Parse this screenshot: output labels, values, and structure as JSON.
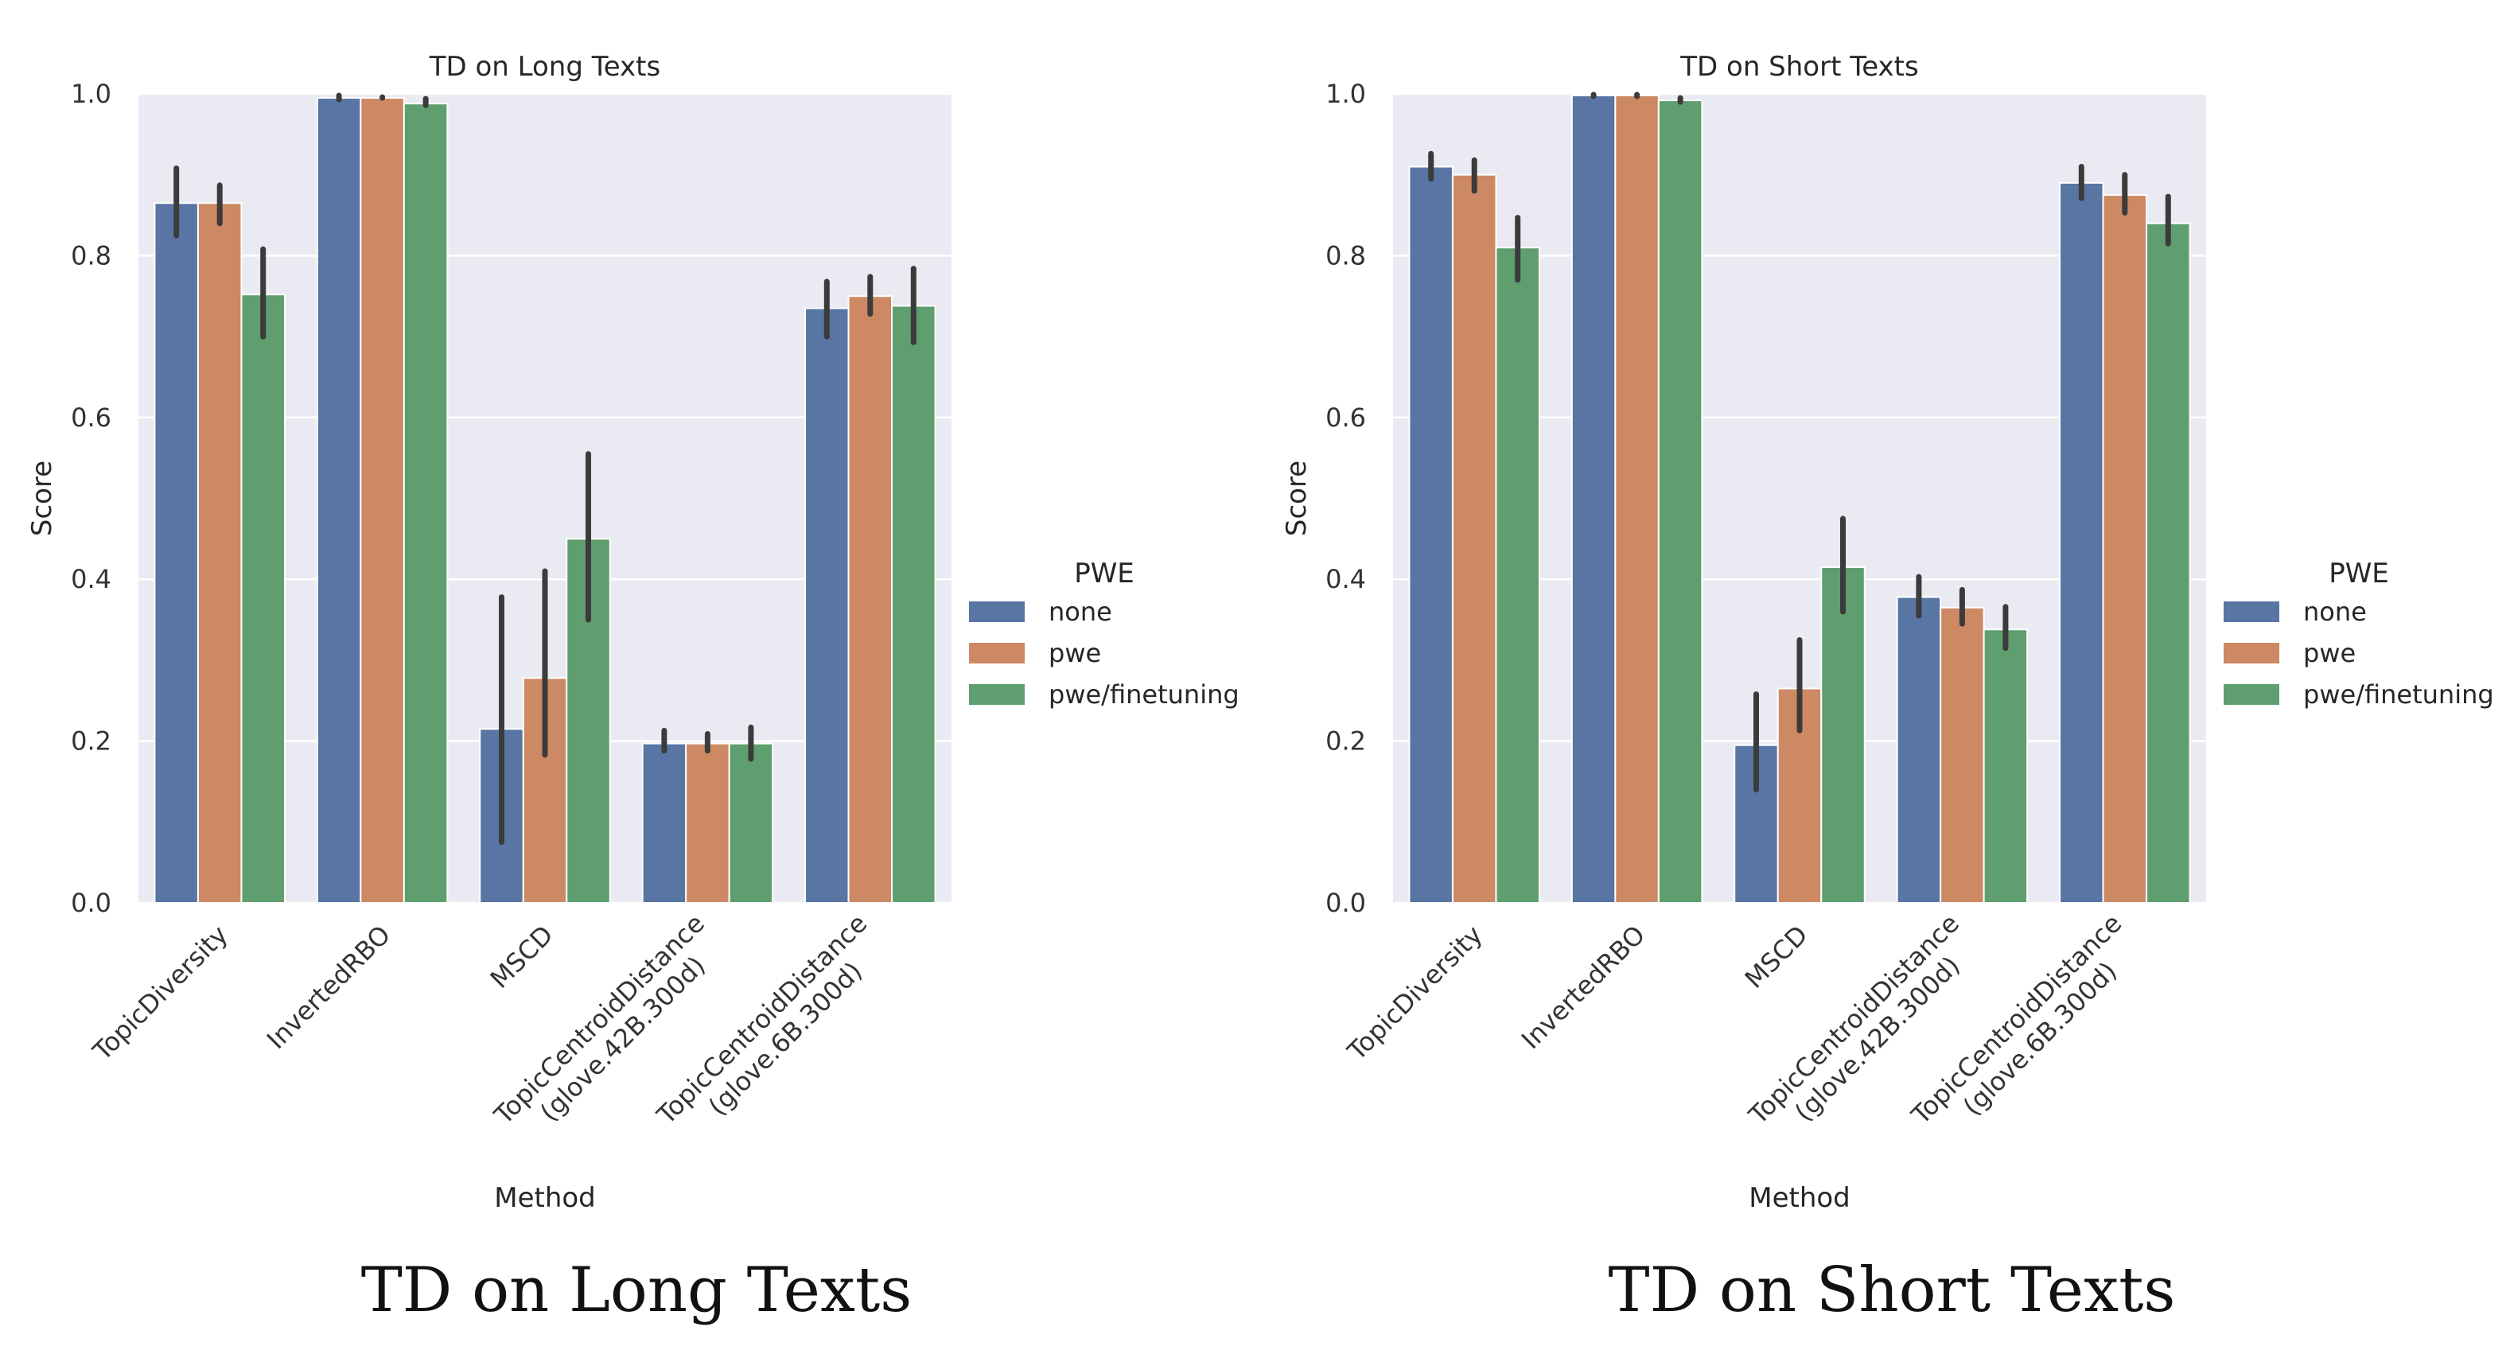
{
  "legend_title": "PWE",
  "colors": {
    "none": "#5875a4",
    "pwe": "#cc8963",
    "pwe/finetuning": "#5f9e6e",
    "error_bar": "#3b3b3b",
    "plot_bg": "#eaeaf2",
    "grid": "#ffffff"
  },
  "chart_data": [
    {
      "type": "bar",
      "title": "TD on Long Texts",
      "caption": "TD on Long Texts",
      "xlabel": "Method",
      "ylabel": "Score",
      "ylim": [
        0,
        1.0
      ],
      "yticks": [
        "0.0",
        "0.2",
        "0.4",
        "0.6",
        "0.8",
        "1.0"
      ],
      "grid": true,
      "legend_position": "right",
      "categories": [
        [
          "TopicDiversity"
        ],
        [
          "InvertedRBO"
        ],
        [
          "MSCD"
        ],
        [
          "TopicCentroidDistance",
          "(glove.42B.300d)"
        ],
        [
          "TopicCentroidDistance",
          "(glove.6B.300d)"
        ]
      ],
      "series": [
        {
          "name": "none",
          "values": [
            0.865,
            0.995,
            0.215,
            0.197,
            0.735
          ],
          "ci_low": [
            0.825,
            0.993,
            0.075,
            0.188,
            0.7
          ],
          "ci_high": [
            0.908,
            0.998,
            0.378,
            0.213,
            0.768
          ]
        },
        {
          "name": "pwe",
          "values": [
            0.865,
            0.995,
            0.278,
            0.197,
            0.75
          ],
          "ci_low": [
            0.84,
            0.995,
            0.183,
            0.188,
            0.728
          ],
          "ci_high": [
            0.887,
            0.996,
            0.41,
            0.209,
            0.774
          ]
        },
        {
          "name": "pwe/finetuning",
          "values": [
            0.752,
            0.988,
            0.45,
            0.197,
            0.738
          ],
          "ci_low": [
            0.7,
            0.986,
            0.35,
            0.178,
            0.693
          ],
          "ci_high": [
            0.808,
            0.994,
            0.555,
            0.217,
            0.784
          ]
        }
      ]
    },
    {
      "type": "bar",
      "title": "TD on Short Texts",
      "caption": "TD on Short Texts",
      "xlabel": "Method",
      "ylabel": "Score",
      "ylim": [
        0,
        1.0
      ],
      "yticks": [
        "0.0",
        "0.2",
        "0.4",
        "0.6",
        "0.8",
        "1.0"
      ],
      "grid": true,
      "legend_position": "right",
      "categories": [
        [
          "TopicDiversity"
        ],
        [
          "InvertedRBO"
        ],
        [
          "MSCD"
        ],
        [
          "TopicCentroidDistance",
          "(glove.42B.300d)"
        ],
        [
          "TopicCentroidDistance",
          "(glove.6B.300d)"
        ]
      ],
      "series": [
        {
          "name": "none",
          "values": [
            0.91,
            0.998,
            0.195,
            0.378,
            0.89
          ],
          "ci_low": [
            0.895,
            0.997,
            0.14,
            0.355,
            0.871
          ],
          "ci_high": [
            0.926,
            0.999,
            0.258,
            0.403,
            0.91
          ]
        },
        {
          "name": "pwe",
          "values": [
            0.9,
            0.998,
            0.265,
            0.365,
            0.875
          ],
          "ci_low": [
            0.88,
            0.997,
            0.213,
            0.345,
            0.853
          ],
          "ci_high": [
            0.918,
            0.999,
            0.325,
            0.387,
            0.9
          ]
        },
        {
          "name": "pwe/finetuning",
          "values": [
            0.81,
            0.992,
            0.415,
            0.338,
            0.84
          ],
          "ci_low": [
            0.77,
            0.99,
            0.36,
            0.315,
            0.815
          ],
          "ci_high": [
            0.847,
            0.995,
            0.475,
            0.366,
            0.873
          ]
        }
      ]
    }
  ]
}
